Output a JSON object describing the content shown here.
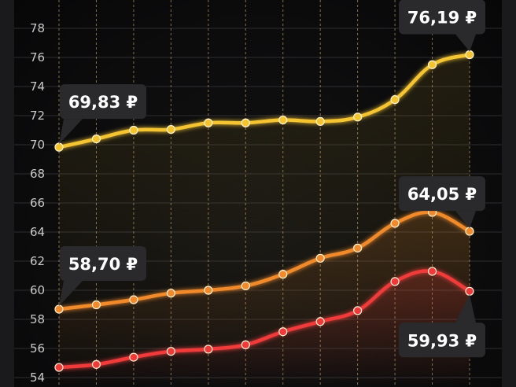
{
  "chart_data": {
    "type": "line",
    "x": [
      0,
      1,
      2,
      3,
      4,
      5,
      6,
      7,
      8,
      9,
      10,
      11
    ],
    "ylim": [
      54,
      78
    ],
    "yticks": [
      54,
      56,
      58,
      60,
      62,
      64,
      66,
      68,
      70,
      72,
      74,
      76,
      78
    ],
    "grid": {
      "horizontal": true,
      "vertical": "dashed"
    },
    "series": [
      {
        "color": "#f4c430",
        "values": [
          69.83,
          70.4,
          71.0,
          71.05,
          71.5,
          71.5,
          71.7,
          71.6,
          71.9,
          73.1,
          75.5,
          76.19
        ],
        "labels": {
          "start": "69,83 ₽",
          "end": "76,19 ₽"
        }
      },
      {
        "color": "#f08a2c",
        "values": [
          58.7,
          59.0,
          59.35,
          59.8,
          60.0,
          60.3,
          61.1,
          62.2,
          62.9,
          64.6,
          65.35,
          64.05
        ],
        "labels": {
          "start": "58,70 ₽",
          "end": "64,05 ₽"
        }
      },
      {
        "color": "#f03a3a",
        "values": [
          54.7,
          54.9,
          55.4,
          55.8,
          55.95,
          56.25,
          57.15,
          57.85,
          58.6,
          60.6,
          61.3,
          59.93
        ],
        "labels": {
          "end": "59,93 ₽"
        }
      }
    ]
  }
}
